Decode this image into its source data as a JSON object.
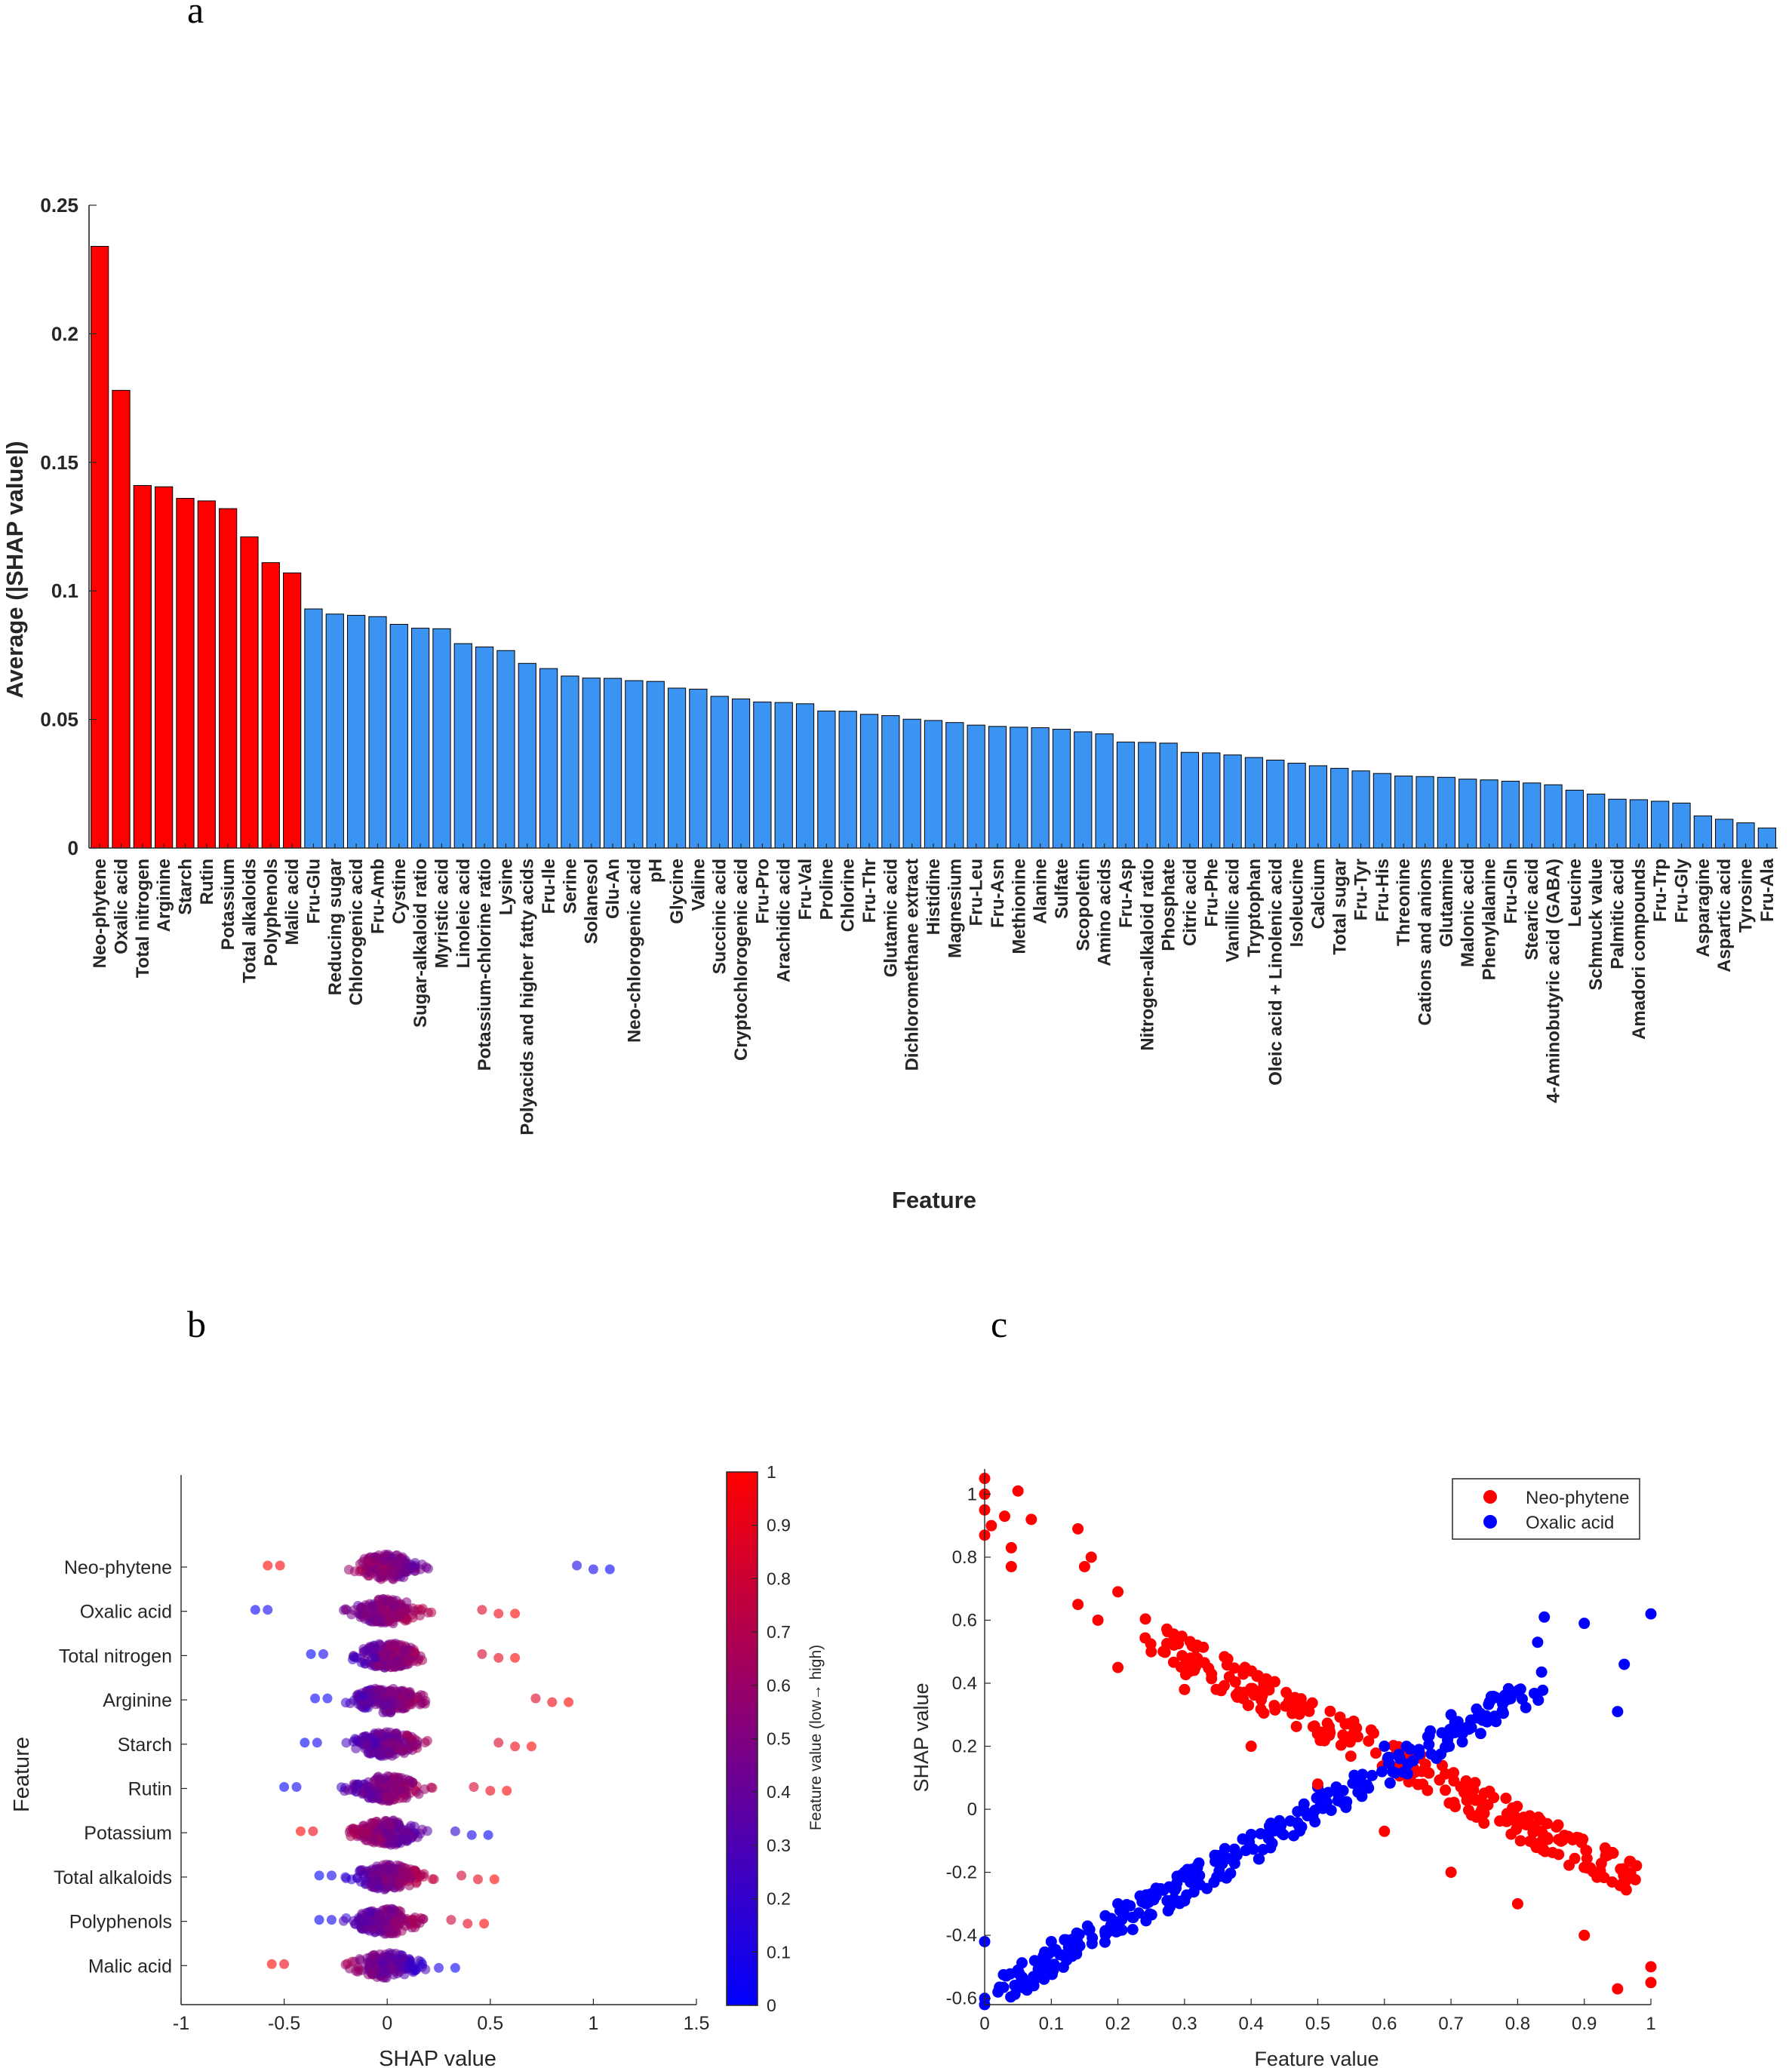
{
  "panels": {
    "a": "a",
    "b": "b",
    "c": "c"
  },
  "colors": {
    "top": "#ff0000",
    "rest": "#3b94f2",
    "red": "#ff0000",
    "blue": "#0000ff",
    "axis": "#262626"
  },
  "chart_data": [
    {
      "type": "bar",
      "title": "",
      "xlabel": "Feature",
      "ylabel": "Average (|SHAP value|)",
      "ylim": [
        0,
        0.25
      ],
      "yticks": [
        0,
        0.05,
        0.1,
        0.15,
        0.2,
        0.25
      ],
      "ytick_labels": [
        "0",
        "0.05",
        "0.1",
        "0.15",
        "0.2",
        "0.25"
      ],
      "top_count": 10,
      "categories": [
        "Neo-phytene",
        "Oxalic acid",
        "Total nitrogen",
        "Arginine",
        "Starch",
        "Rutin",
        "Potassium",
        "Total alkaloids",
        "Polyphenols",
        "Malic acid",
        "Fru-Glu",
        "Reducing sugar",
        "Chlorogenic acid",
        "Fru-Amb",
        "Cystine",
        "Sugar-alkaloid ratio",
        "Myristic acid",
        "Linoleic acid",
        "Potassium-chlorine ratio",
        "Lysine",
        "Polyacids and higher fatty acids",
        "Fru-Ile",
        "Serine",
        "Solanesol",
        "Glu-An",
        "Neo-chlorogenic acid",
        "pH",
        "Glycine",
        "Valine",
        "Succinic acid",
        "Cryptochlorogenic acid",
        "Fru-Pro",
        "Arachidic acid",
        "Fru-Val",
        "Proline",
        "Chlorine",
        "Fru-Thr",
        "Glutamic acid",
        "Dichloromethane extract",
        "Histidine",
        "Magnesium",
        "Fru-Leu",
        "Fru-Asn",
        "Methionine",
        "Alanine",
        "Sulfate",
        "Scopoletin",
        "Amino acids",
        "Fru-Asp",
        "Nitrogen-alkaloid ratio",
        "Phosphate",
        "Citric acid",
        "Fru-Phe",
        "Vanillic acid",
        "Tryptophan",
        "Oleic acid + Linolenic acid",
        "Isoleucine",
        "Calcium",
        "Total sugar",
        "Fru-Tyr",
        "Fru-His",
        "Threonine",
        "Cations and anions",
        "Glutamine",
        "Malonic acid",
        "Phenylalanine",
        "Fru-Gln",
        "Stearic acid",
        "4-Aminobutyric acid (GABA)",
        "Leucine",
        "Schmuck value",
        "Palmitic acid",
        "Amadori compounds",
        "Fru-Trp",
        "Fru-Gly",
        "Asparagine",
        "Aspartic acid",
        "Tyrosine",
        "Fru-Ala"
      ],
      "values": [
        0.234,
        0.178,
        0.141,
        0.1405,
        0.136,
        0.135,
        0.132,
        0.121,
        0.111,
        0.107,
        0.093,
        0.091,
        0.0905,
        0.09,
        0.087,
        0.0855,
        0.0853,
        0.0795,
        0.0782,
        0.0768,
        0.0718,
        0.0698,
        0.0669,
        0.0661,
        0.066,
        0.0651,
        0.0648,
        0.0622,
        0.0618,
        0.059,
        0.058,
        0.0568,
        0.0566,
        0.0561,
        0.0533,
        0.0532,
        0.052,
        0.0515,
        0.0501,
        0.0496,
        0.0488,
        0.0478,
        0.0473,
        0.047,
        0.0468,
        0.0462,
        0.0452,
        0.0444,
        0.0412,
        0.0411,
        0.0408,
        0.0372,
        0.037,
        0.0362,
        0.0352,
        0.0342,
        0.033,
        0.032,
        0.031,
        0.03,
        0.029,
        0.028,
        0.0278,
        0.0275,
        0.0268,
        0.0265,
        0.026,
        0.0253,
        0.0246,
        0.0225,
        0.021,
        0.019,
        0.0188,
        0.0182,
        0.0175,
        0.0125,
        0.0112,
        0.0098,
        0.0078
      ]
    },
    {
      "type": "scatter",
      "title": "",
      "xlabel": "SHAP value",
      "ylabel": "Feature",
      "xlim": [
        -1,
        1.5
      ],
      "xticks": [
        -1,
        -0.5,
        0,
        0.5,
        1,
        1.5
      ],
      "xtick_labels": [
        "-1",
        "-0.5",
        "0",
        "0.5",
        "1",
        "1.5"
      ],
      "colorbar": {
        "label": "Feature value (low→ high)",
        "range": [
          0,
          1
        ],
        "ticks": [
          "0",
          "0.1",
          "0.2",
          "0.3",
          "0.4",
          "0.5",
          "0.6",
          "0.7",
          "0.8",
          "0.9",
          "1"
        ],
        "low_color": "#0000ff",
        "high_color": "#ff0000"
      },
      "features": [
        {
          "name": "Neo-phytene",
          "min": -0.58,
          "max": 1.08,
          "core": [
            -0.5,
            0.55
          ],
          "trend": -1
        },
        {
          "name": "Oxalic acid",
          "min": -0.64,
          "max": 0.62,
          "core": [
            -0.6,
            0.5
          ],
          "trend": 1
        },
        {
          "name": "Total nitrogen",
          "min": -0.37,
          "max": 0.62,
          "core": [
            -0.35,
            0.4
          ],
          "trend": 1
        },
        {
          "name": "Arginine",
          "min": -0.35,
          "max": 0.88,
          "core": [
            -0.35,
            0.45
          ],
          "trend": 1
        },
        {
          "name": "Starch",
          "min": -0.4,
          "max": 0.7,
          "core": [
            -0.35,
            0.5
          ],
          "trend": 1
        },
        {
          "name": "Rutin",
          "min": -0.5,
          "max": 0.58,
          "core": [
            -0.45,
            0.45
          ],
          "trend": 1
        },
        {
          "name": "Potassium",
          "min": -0.42,
          "max": 0.49,
          "core": [
            -0.42,
            0.4
          ],
          "trend": -1
        },
        {
          "name": "Total alkaloids",
          "min": -0.33,
          "max": 0.52,
          "core": [
            -0.3,
            0.35
          ],
          "trend": 1
        },
        {
          "name": "Polyphenols",
          "min": -0.33,
          "max": 0.47,
          "core": [
            -0.3,
            0.35
          ],
          "trend": 1
        },
        {
          "name": "Malic acid",
          "min": -0.56,
          "max": 0.33,
          "core": [
            -0.5,
            0.3
          ],
          "trend": -1
        }
      ]
    },
    {
      "type": "scatter",
      "title": "",
      "xlabel": "Feature value",
      "ylabel": "SHAP value",
      "xlim": [
        0,
        1
      ],
      "ylim": [
        -0.62,
        1.08
      ],
      "xticks": [
        0,
        0.1,
        0.2,
        0.3,
        0.4,
        0.5,
        0.6,
        0.7,
        0.8,
        0.9,
        1
      ],
      "xtick_labels": [
        "0",
        "0.1",
        "0.2",
        "0.3",
        "0.4",
        "0.5",
        "0.6",
        "0.7",
        "0.8",
        "0.9",
        "1"
      ],
      "yticks": [
        -0.6,
        -0.4,
        -0.2,
        0,
        0.2,
        0.4,
        0.6,
        0.8,
        1
      ],
      "ytick_labels": [
        "-0.6",
        "-0.4",
        "-0.2",
        "0",
        "0.2",
        "0.4",
        "0.6",
        "0.8",
        "1"
      ],
      "legend": {
        "position": "top-right",
        "entries": [
          "Neo-phytene",
          "Oxalic acid"
        ]
      },
      "series": [
        {
          "name": "Neo-phytene",
          "color": "#ff0000",
          "x": [
            0,
            0,
            0,
            0,
            0.01,
            0.03,
            0.04,
            0.04,
            0.05,
            0.07,
            0.14,
            0.14,
            0.15,
            0.16,
            0.17,
            0.2,
            0.2,
            0.25,
            0.3,
            0.4,
            0.5,
            0.6,
            0.7,
            0.8,
            0.9,
            0.95,
            1.0,
            1.0
          ],
          "y": [
            1.05,
            1.0,
            0.95,
            0.87,
            0.9,
            0.93,
            0.83,
            0.77,
            1.01,
            0.92,
            0.89,
            0.65,
            0.77,
            0.8,
            0.6,
            0.69,
            0.45,
            0.5,
            0.38,
            0.2,
            0.08,
            -0.07,
            -0.2,
            -0.3,
            -0.4,
            -0.57,
            -0.5,
            -0.55
          ]
        },
        {
          "name": "Oxalic acid",
          "color": "#0000ff",
          "x": [
            0,
            0,
            0,
            0.02,
            0.05,
            0.1,
            0.2,
            0.3,
            0.4,
            0.5,
            0.6,
            0.7,
            0.8,
            0.83,
            0.84,
            0.9,
            0.95,
            0.96,
            1.0
          ],
          "y": [
            -0.6,
            -0.62,
            -0.42,
            -0.58,
            -0.52,
            -0.42,
            -0.3,
            -0.2,
            -0.08,
            0.07,
            0.2,
            0.3,
            0.37,
            0.53,
            0.61,
            0.59,
            0.31,
            0.46,
            0.62
          ]
        }
      ]
    }
  ]
}
